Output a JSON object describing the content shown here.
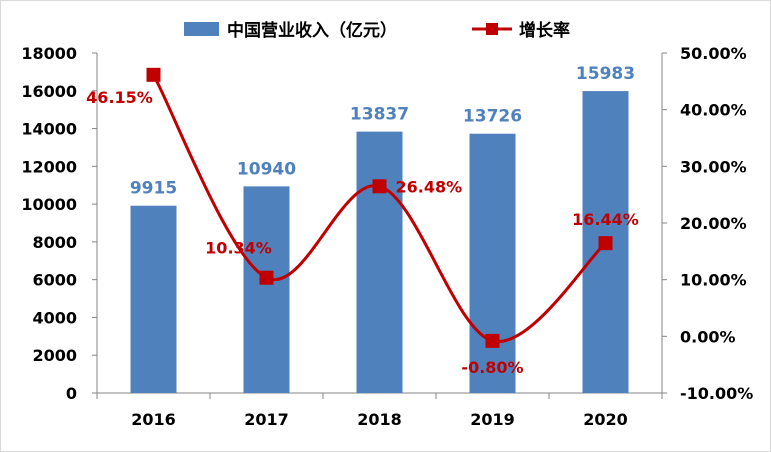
{
  "chart_data": {
    "type": "bar",
    "categories": [
      "2016",
      "2017",
      "2018",
      "2019",
      "2020"
    ],
    "series": [
      {
        "name": "中国营业收入（亿元）",
        "type": "bar",
        "axis": "left",
        "color": "#4f81bd",
        "values": [
          9915,
          10940,
          13837,
          13726,
          15983
        ],
        "labels": [
          "9915",
          "10940",
          "13837",
          "13726",
          "15983"
        ]
      },
      {
        "name": "增长率",
        "type": "line",
        "axis": "right",
        "color": "#c00000",
        "values": [
          46.15,
          10.34,
          26.48,
          -0.8,
          16.44
        ],
        "labels": [
          "46.15%",
          "10.34%",
          "26.48%",
          "-0.80%",
          "16.44%"
        ]
      }
    ],
    "y_left": {
      "ylim": [
        0,
        18000
      ],
      "ticks": [
        "0",
        "2000",
        "4000",
        "6000",
        "8000",
        "10000",
        "12000",
        "14000",
        "16000",
        "18000"
      ]
    },
    "y_right": {
      "ylim": [
        -10,
        50
      ],
      "ticks": [
        "-10.00%",
        "0.00%",
        "10.00%",
        "20.00%",
        "30.00%",
        "40.00%",
        "50.00%"
      ]
    },
    "legend": "top-center",
    "grid": false
  }
}
